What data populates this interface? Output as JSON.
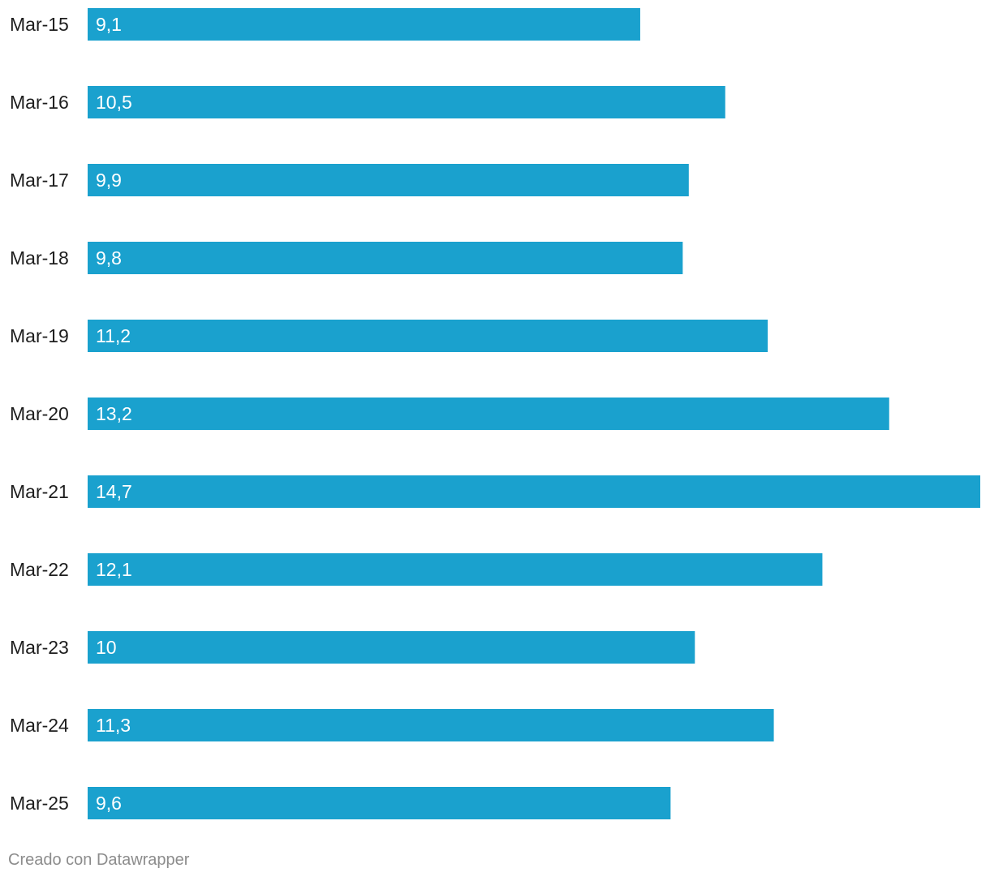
{
  "chart_data": {
    "type": "bar",
    "orientation": "horizontal",
    "categories": [
      "Mar-15",
      "Mar-16",
      "Mar-17",
      "Mar-18",
      "Mar-19",
      "Mar-20",
      "Mar-21",
      "Mar-22",
      "Mar-23",
      "Mar-24",
      "Mar-25"
    ],
    "values": [
      9.1,
      10.5,
      9.9,
      9.8,
      11.2,
      13.2,
      14.7,
      12.1,
      10,
      11.3,
      9.6
    ],
    "value_labels": [
      "9,1",
      "10,5",
      "9,9",
      "9,8",
      "11,2",
      "13,2",
      "14,7",
      "12,1",
      "10",
      "11,3",
      "9,6"
    ],
    "title": "",
    "xlabel": "",
    "ylabel": "",
    "xlim": [
      0,
      14.7
    ],
    "grid": false,
    "bar_color": "#1aa1ce"
  },
  "footer": {
    "credit": "Creado con Datawrapper"
  }
}
